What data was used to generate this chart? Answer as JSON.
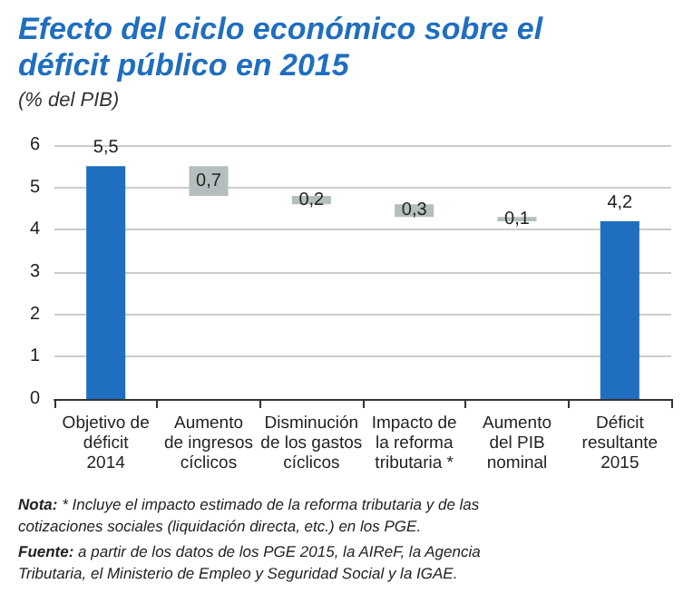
{
  "chart_data": {
    "type": "bar",
    "title": "Efecto del ciclo económico sobre el déficit público en 2015",
    "subtitle": "(% del PIB)",
    "categories": [
      "Objetivo de\ndéficit\n2014",
      "Aumento\nde ingresos\ncíclicos",
      "Disminución\nde los gastos\ncíclicos",
      "Impacto de\nla reforma\ntributaria *",
      "Aumento\ndel PIB\nnominal",
      "Déficit\nresultante\n2015"
    ],
    "values": [
      5.5,
      0.7,
      0.2,
      0.3,
      0.1,
      4.2
    ],
    "base": [
      0,
      4.8,
      4.6,
      4.3,
      4.2,
      0
    ],
    "colors": [
      "#1f6ebf",
      "#b4bebe",
      "#b4bebe",
      "#b4bebe",
      "#b4bebe",
      "#1f6ebf"
    ],
    "value_labels": [
      "5,5",
      "0,7",
      "0,2",
      "0,3",
      "0,1",
      "4,2"
    ],
    "ylim": [
      0,
      6
    ],
    "yticks": [
      0,
      1,
      2,
      3,
      4,
      5,
      6
    ],
    "grid": "y",
    "annotations": [
      "Nota: * Incluye el impacto estimado de la reforma tributaria y de las cotizaciones sociales (liquidación directa, etc.) en los PGE.",
      "Fuente: a partir de los datos de los PGE 2015, la AIReF, la Agencia Tributaria, el Ministerio de Empleo y Seguridad Social y la IGAE."
    ]
  }
}
